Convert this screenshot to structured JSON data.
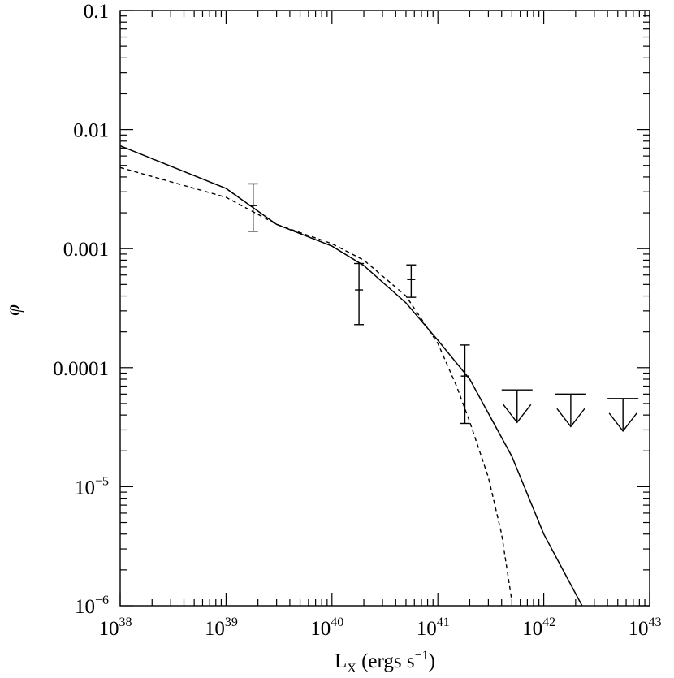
{
  "chart_data": {
    "type": "line",
    "title": "",
    "xlabel": "L",
    "xlabel_sub": "X",
    "xlabel_units": " (ergs s",
    "xlabel_units_sup": "−1",
    "xlabel_units_close": ")",
    "ylabel": "φ",
    "xscale": "log",
    "yscale": "log",
    "xlim": [
      1e+38,
      1e+43
    ],
    "ylim": [
      1e-06,
      0.1
    ],
    "x_ticks": [
      {
        "value": 1e+38,
        "base": "10",
        "exp": "38"
      },
      {
        "value": 1e+39,
        "base": "10",
        "exp": "39"
      },
      {
        "value": 1e+40,
        "base": "10",
        "exp": "40"
      },
      {
        "value": 1e+41,
        "base": "10",
        "exp": "41"
      },
      {
        "value": 1e+42,
        "base": "10",
        "exp": "42"
      },
      {
        "value": 1e+43,
        "base": "10",
        "exp": "43"
      }
    ],
    "y_ticks": [
      {
        "value": 0.1,
        "base": "0.1",
        "exp": ""
      },
      {
        "value": 0.01,
        "base": "0.01",
        "exp": ""
      },
      {
        "value": 0.001,
        "base": "0.001",
        "exp": ""
      },
      {
        "value": 0.0001,
        "base": "0.0001",
        "exp": ""
      },
      {
        "value": 1e-05,
        "base": "10",
        "exp": "−5"
      },
      {
        "value": 1e-06,
        "base": "10",
        "exp": "−6"
      }
    ],
    "grid": false,
    "series": [
      {
        "style": "solid",
        "x": [
          1e+38,
          1e+39,
          3e+39,
          1e+40,
          2e+40,
          5e+40,
          1e+41,
          2e+41,
          5e+41,
          1e+42,
          2.3e+42
        ],
        "y": [
          0.0073,
          0.0032,
          0.0016,
          0.00105,
          0.00072,
          0.00035,
          0.00017,
          8e-05,
          1.8e-05,
          4e-06,
          1e-06
        ]
      },
      {
        "style": "dashed",
        "x": [
          1e+38,
          1e+39,
          3e+39,
          1e+40,
          2e+40,
          5e+40,
          1e+41,
          1.5e+41,
          2e+41,
          3e+41,
          4e+41,
          5e+41
        ],
        "y": [
          0.0048,
          0.0027,
          0.0016,
          0.0011,
          0.0008,
          0.0004,
          0.00016,
          7e-05,
          3.5e-05,
          1.2e-05,
          4e-06,
          1.1e-06
        ]
      }
    ],
    "data_points": [
      {
        "x": 1.8e+39,
        "y": 0.0023,
        "y_low": 0.0014,
        "y_high": 0.0035
      },
      {
        "x": 1.8e+40,
        "y": 0.00045,
        "y_low": 0.00023,
        "y_high": 0.00075
      },
      {
        "x": 5.6e+40,
        "y": 0.00055,
        "y_low": 0.00039,
        "y_high": 0.00073
      },
      {
        "x": 1.8e+41,
        "y": 8.5e-05,
        "y_low": 3.4e-05,
        "y_high": 0.000155
      }
    ],
    "upper_limits": [
      {
        "x": 5.6e+41,
        "y": 6.5e-05
      },
      {
        "x": 1.8e+42,
        "y": 6e-05
      },
      {
        "x": 5.6e+42,
        "y": 5.5e-05
      }
    ]
  }
}
